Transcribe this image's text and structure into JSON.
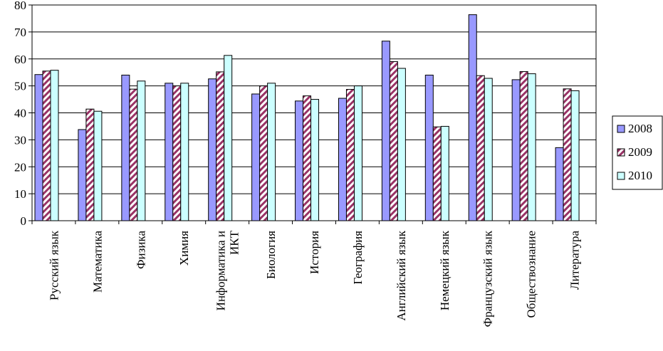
{
  "chart_data": {
    "type": "bar",
    "title": "",
    "xlabel": "",
    "ylabel": "",
    "ylim": [
      0,
      80
    ],
    "yticks": [
      0,
      10,
      20,
      30,
      40,
      50,
      60,
      70,
      80
    ],
    "grid": "horizontal",
    "legend_position": "right",
    "categories": [
      [
        "Русский язык"
      ],
      [
        "Математика"
      ],
      [
        "Физика"
      ],
      [
        "Химия"
      ],
      [
        "Информатика и",
        "ИКТ"
      ],
      [
        "Биология"
      ],
      [
        "История"
      ],
      [
        "География"
      ],
      [
        "Английский язык"
      ],
      [
        "Немецкий язык"
      ],
      [
        "Французский язык"
      ],
      [
        "Обществознание"
      ],
      [
        "Литература"
      ]
    ],
    "series": [
      {
        "name": "2008",
        "color": "#9999ff",
        "pattern": "solid",
        "values": [
          54.2,
          33.8,
          54.0,
          51.0,
          52.6,
          47.0,
          44.4,
          45.4,
          66.6,
          54.0,
          76.4,
          52.3,
          27.1
        ]
      },
      {
        "name": "2009",
        "color": "#993366",
        "pattern": "diagonal-hatch",
        "values": [
          55.5,
          41.4,
          48.8,
          50.0,
          55.2,
          50.0,
          46.3,
          48.7,
          59.0,
          34.8,
          53.8,
          55.3,
          48.9
        ]
      },
      {
        "name": "2010",
        "color": "#ccffff",
        "pattern": "solid",
        "values": [
          55.8,
          40.6,
          51.8,
          51.0,
          61.3,
          51.0,
          45.0,
          50.0,
          56.5,
          35.0,
          52.8,
          54.5,
          48.2
        ]
      }
    ]
  }
}
